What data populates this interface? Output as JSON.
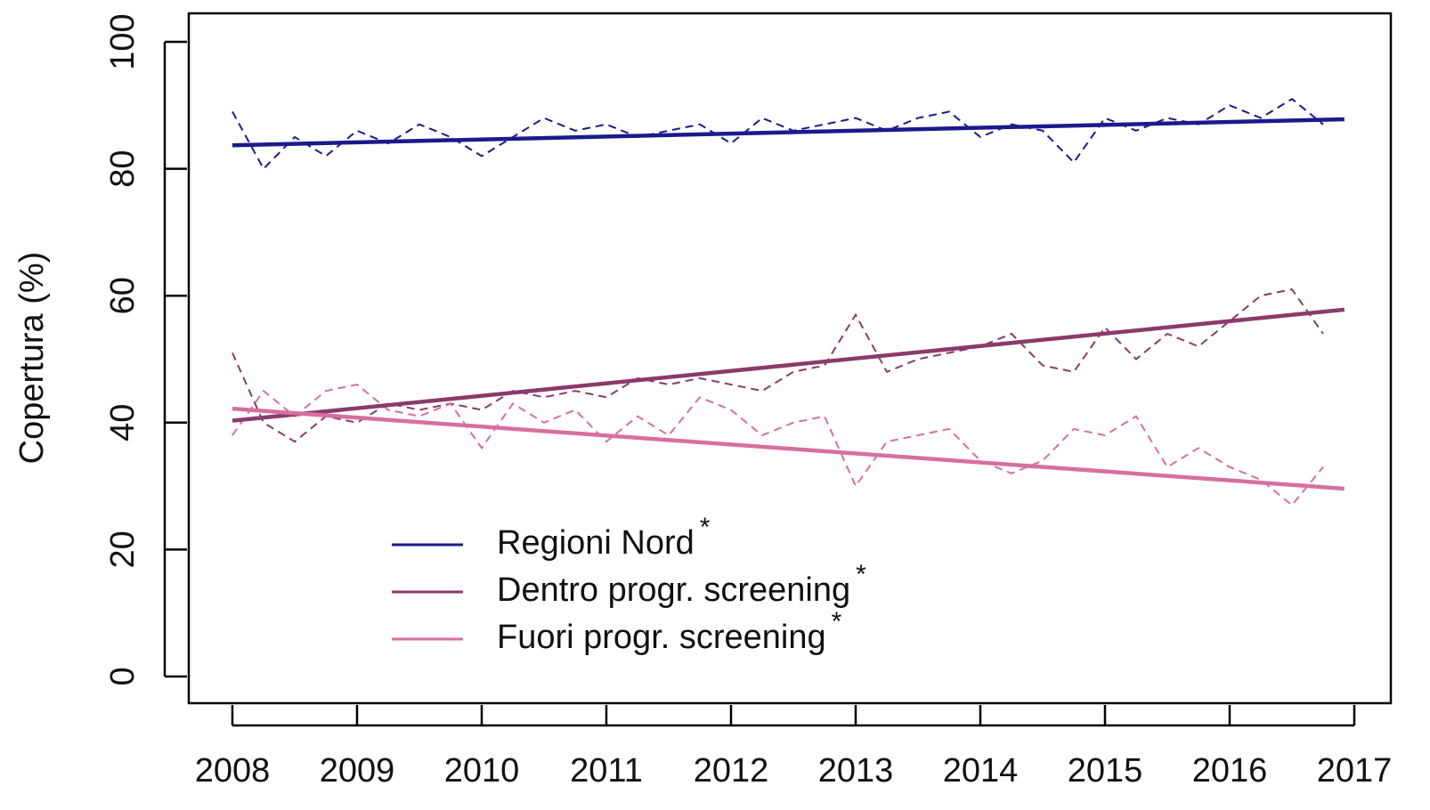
{
  "chart_data": {
    "type": "line",
    "ylabel": "Copertura (%)",
    "x": [
      2008,
      2008.25,
      2008.5,
      2008.75,
      2009,
      2009.25,
      2009.5,
      2009.75,
      2010,
      2010.25,
      2010.5,
      2010.75,
      2011,
      2011.25,
      2011.5,
      2011.75,
      2012,
      2012.25,
      2012.5,
      2012.75,
      2013,
      2013.25,
      2013.5,
      2013.75,
      2014,
      2014.25,
      2014.5,
      2014.75,
      2015,
      2015.25,
      2015.5,
      2015.75,
      2016,
      2016.25,
      2016.5,
      2016.75
    ],
    "trend_x": [
      2008,
      2016.92
    ],
    "series": [
      {
        "name": "Regioni Nord",
        "color": "#1a1a8c",
        "trend": [
          83.7,
          87.8
        ],
        "values": [
          89,
          80,
          85,
          82,
          86,
          84,
          87,
          85,
          82,
          85,
          88,
          86,
          87,
          85,
          86,
          87,
          84,
          88,
          86,
          87,
          88,
          86,
          88,
          89,
          85,
          87,
          86,
          81,
          88,
          86,
          88,
          87,
          90,
          88,
          91,
          87
        ]
      },
      {
        "name": "Dentro progr. screening",
        "color": "#8b3a6b",
        "trend": [
          40.3,
          57.8
        ],
        "values": [
          51,
          40,
          37,
          41,
          40,
          43,
          42,
          43,
          42,
          45,
          44,
          45,
          44,
          47,
          46,
          47,
          46,
          45,
          48,
          49,
          57,
          48,
          50,
          51,
          52,
          54,
          49,
          48,
          55,
          50,
          54,
          52,
          56,
          60,
          61,
          54
        ]
      },
      {
        "name": "Fuori progr. screening",
        "color": "#d66fa0",
        "trend": [
          42.2,
          29.6
        ],
        "values": [
          38,
          45,
          41,
          45,
          46,
          42,
          41,
          43,
          36,
          43,
          40,
          42,
          37,
          41,
          38,
          44,
          42,
          38,
          40,
          41,
          30,
          37,
          38,
          39,
          34,
          32,
          34,
          39,
          38,
          41,
          33,
          36,
          33,
          31,
          27,
          33
        ]
      }
    ],
    "legend_marker": "*",
    "xlim": [
      2007.65,
      2017.293
    ],
    "xticks": [
      2008,
      2009,
      2010,
      2011,
      2012,
      2013,
      2014,
      2015,
      2016,
      2017
    ],
    "ylim": [
      -4.21,
      104.49
    ],
    "yticks": [
      0,
      20,
      40,
      60,
      80,
      100
    ]
  }
}
